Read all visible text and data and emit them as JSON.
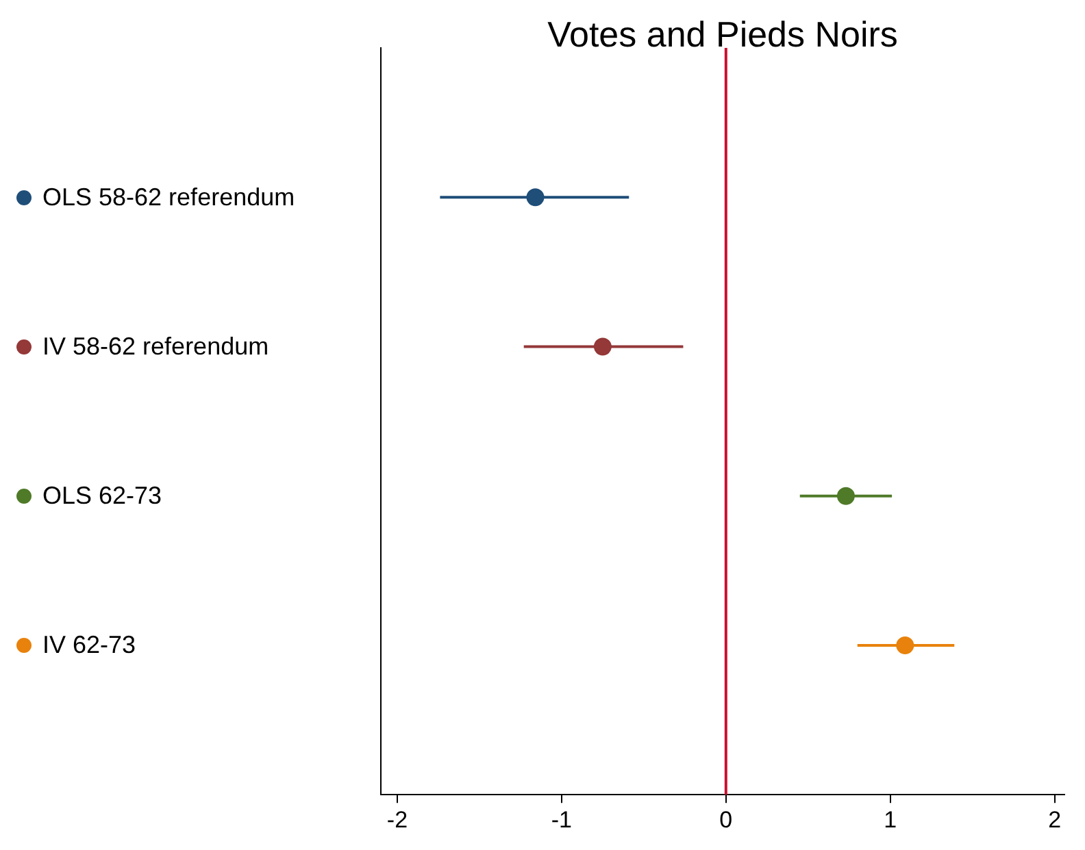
{
  "chart_data": {
    "type": "scatter",
    "title": "Votes and Pieds Noirs",
    "orientation": "horizontal",
    "categories": [
      null,
      null,
      null,
      null
    ],
    "series": [
      {
        "name": "OLS 58-62 referendum",
        "color": "#1f4e79",
        "values": [
          -1.16,
          null,
          null,
          null
        ],
        "errors": [
          [
            -1.74,
            -0.59
          ],
          null,
          null,
          null
        ]
      },
      {
        "name": "IV 58-62 referendum",
        "color": "#943838",
        "values": [
          null,
          -0.75,
          null,
          null
        ],
        "errors": [
          null,
          [
            -1.23,
            -0.26
          ],
          null,
          null
        ]
      },
      {
        "name": "OLS 62-73",
        "color": "#4f7a28",
        "values": [
          null,
          null,
          0.73,
          null
        ],
        "errors": [
          null,
          null,
          [
            0.45,
            1.01
          ],
          null
        ]
      },
      {
        "name": "IV 62-73",
        "color": "#e8820c",
        "values": [
          null,
          null,
          null,
          1.09
        ],
        "errors": [
          null,
          null,
          null,
          [
            0.8,
            1.39
          ]
        ]
      }
    ],
    "xlim": [
      -2.1,
      2.06
    ],
    "xticks": [
      -2,
      -1,
      0,
      1,
      2
    ],
    "tick_labels": "x",
    "grid": false,
    "legend": "left",
    "marker": "circle",
    "ref_lines": [
      {
        "axis": "x",
        "value": 0,
        "color": "#c8102e"
      }
    ]
  }
}
